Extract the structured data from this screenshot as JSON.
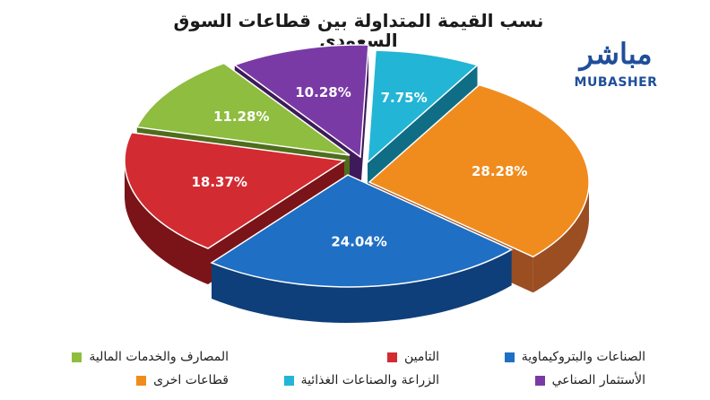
{
  "header": {
    "title": "نسب القيمة المتداولة بين قطاعات السوق السعودي"
  },
  "logo": {
    "arabic": "مباشر",
    "english": "MUBASHER"
  },
  "chart_data": {
    "type": "pie",
    "title": "نسب القيمة المتداولة بين قطاعات السوق السعودي",
    "legend_position": "bottom",
    "slices": [
      {
        "name": "قطاعات اخرى",
        "value": 28.28,
        "label": "28.28%",
        "color": "#f08c1e",
        "side": "#9a4e22"
      },
      {
        "name": "الصناعات والبتروكيماوية",
        "value": 24.04,
        "label": "24.04%",
        "color": "#1f6fc4",
        "side": "#0f3f7a"
      },
      {
        "name": "التامين",
        "value": 18.37,
        "label": "18.37%",
        "color": "#d32b32",
        "side": "#7a1418"
      },
      {
        "name": "المصارف والخدمات المالية",
        "value": 11.28,
        "label": "11.28%",
        "color": "#8ebd3f",
        "side": "#4e6e1c"
      },
      {
        "name": "الأستثمار الصناعي",
        "value": 10.28,
        "label": "10.28%",
        "color": "#7a3aa6",
        "side": "#3e1a5a"
      },
      {
        "name": "الزراعة والصناعات الغذائية",
        "value": 7.75,
        "label": "7.75%",
        "color": "#22b5d6",
        "side": "#0f6e86"
      }
    ],
    "legend": [
      {
        "label": "الصناعات والبتروكيماوية",
        "color": "#1f6fc4"
      },
      {
        "label": "التامين",
        "color": "#d32b32"
      },
      {
        "label": "المصارف والخدمات المالية",
        "color": "#8ebd3f"
      },
      {
        "label": "الأستثمار الصناعي",
        "color": "#7a3aa6"
      },
      {
        "label": "الزراعة والصناعات الغذائية",
        "color": "#22b5d6"
      },
      {
        "label": "قطاعات اخرى",
        "color": "#f08c1e"
      }
    ]
  }
}
